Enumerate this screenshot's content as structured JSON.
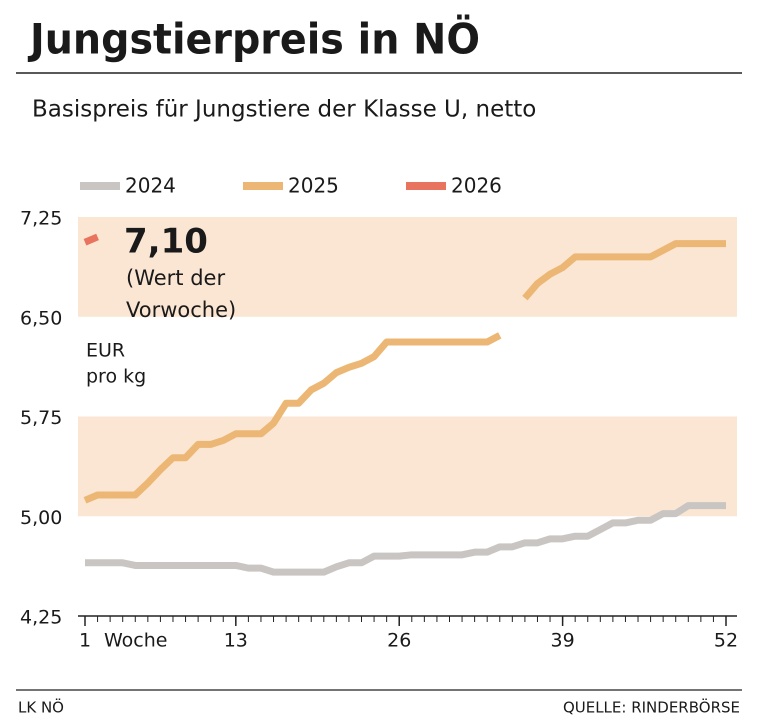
{
  "chart_data": {
    "type": "line",
    "title": "Jungstierpreis in NÖ",
    "subtitle": "Basispreis für Jungstiere der Klasse U, netto",
    "y_label": [
      "EUR",
      "pro kg"
    ],
    "x_label": "Woche",
    "annotation": [
      "7,10",
      "(Wert der",
      "Vorwoche)"
    ],
    "source_left": "LK NÖ",
    "source_right": "QUELLE: RINDERBÖRSE",
    "x": [
      1,
      2,
      3,
      4,
      5,
      6,
      7,
      8,
      9,
      10,
      11,
      12,
      13,
      14,
      15,
      16,
      17,
      18,
      19,
      20,
      21,
      22,
      23,
      24,
      25,
      26,
      27,
      28,
      29,
      30,
      31,
      32,
      33,
      34,
      35,
      36,
      37,
      38,
      39,
      40,
      41,
      42,
      43,
      44,
      45,
      46,
      47,
      48,
      49,
      50,
      51,
      52
    ],
    "xlim": [
      1,
      52
    ],
    "xticks": [
      1,
      13,
      26,
      39,
      52
    ],
    "ylim": [
      4.25,
      7.25
    ],
    "yticks": [
      {
        "value": 4.25,
        "label": "4,25"
      },
      {
        "value": 5.0,
        "label": "5,00"
      },
      {
        "value": 5.75,
        "label": "5,75"
      },
      {
        "value": 6.5,
        "label": "6,50"
      },
      {
        "value": 7.25,
        "label": "7,25"
      }
    ],
    "series": [
      {
        "name": "2024",
        "color": "#c9c5c2",
        "values": [
          4.65,
          4.65,
          4.65,
          4.65,
          4.63,
          4.63,
          4.63,
          4.63,
          4.63,
          4.63,
          4.63,
          4.63,
          4.63,
          4.61,
          4.61,
          4.58,
          4.58,
          4.58,
          4.58,
          4.58,
          4.62,
          4.65,
          4.65,
          4.7,
          4.7,
          4.7,
          4.71,
          4.71,
          4.71,
          4.71,
          4.71,
          4.73,
          4.73,
          4.77,
          4.77,
          4.8,
          4.8,
          4.83,
          4.83,
          4.85,
          4.85,
          4.9,
          4.95,
          4.95,
          4.97,
          4.97,
          5.02,
          5.02,
          5.08,
          5.08,
          5.08,
          5.08
        ]
      },
      {
        "name": "2025",
        "color": "#ecb774",
        "values": [
          5.12,
          5.16,
          5.16,
          5.16,
          5.16,
          5.25,
          5.35,
          5.44,
          5.44,
          5.54,
          5.54,
          5.57,
          5.62,
          5.62,
          5.62,
          5.7,
          5.85,
          5.85,
          5.95,
          6.0,
          6.08,
          6.12,
          6.15,
          6.2,
          6.31,
          6.31,
          6.31,
          6.31,
          6.31,
          6.31,
          6.31,
          6.31,
          6.31,
          6.36,
          null,
          6.64,
          6.75,
          6.82,
          6.87,
          6.95,
          6.95,
          6.95,
          6.95,
          6.95,
          6.95,
          6.95,
          7.0,
          7.05,
          7.05,
          7.05,
          7.05,
          7.05
        ]
      },
      {
        "name": "2026",
        "color": "#e8735e",
        "values": [
          7.06,
          7.1,
          null,
          null,
          null,
          null,
          null,
          null,
          null,
          null,
          null,
          null,
          null,
          null,
          null,
          null,
          null,
          null,
          null,
          null,
          null,
          null,
          null,
          null,
          null,
          null,
          null,
          null,
          null,
          null,
          null,
          null,
          null,
          null,
          null,
          null,
          null,
          null,
          null,
          null,
          null,
          null,
          null,
          null,
          null,
          null,
          null,
          null,
          null,
          null,
          null,
          null
        ]
      }
    ]
  }
}
